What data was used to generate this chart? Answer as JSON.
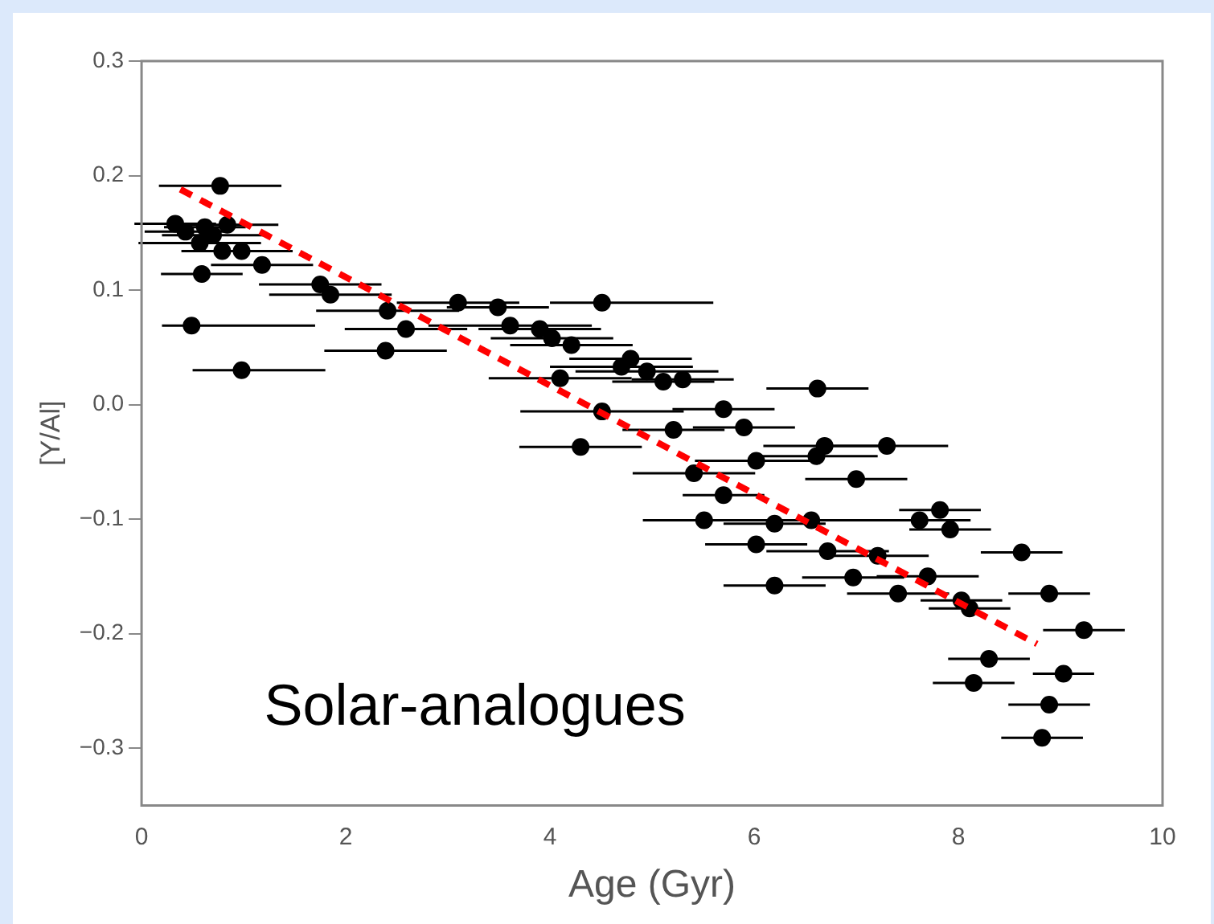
{
  "chart_data": {
    "type": "scatter",
    "xlabel": "Age (Gyr)",
    "ylabel": "[Y/Al]",
    "annotations": [
      "Solar-analogues"
    ],
    "xlim": [
      0,
      10
    ],
    "xticks": [
      0,
      2,
      4,
      6,
      8,
      10
    ],
    "ylim": [
      -0.35,
      0.3
    ],
    "yticks": [
      {
        "value": -0.3,
        "label": "−0.3"
      },
      {
        "value": -0.2,
        "label": "−0.2"
      },
      {
        "value": -0.1,
        "label": "−0.1"
      },
      {
        "value": 0,
        "label": "0.0"
      },
      0.1,
      0.2,
      0.3
    ],
    "grid": false,
    "legend": false,
    "marker": "circle",
    "series": [
      {
        "color": "#000000",
        "x": [
          0.33,
          0.43,
          0.49,
          0.57,
          0.59,
          0.62,
          0.7,
          0.77,
          0.79,
          0.84,
          0.98,
          0.98,
          1.18,
          1.75,
          1.85,
          2.39,
          2.41,
          2.59,
          3.1,
          3.49,
          3.61,
          3.9,
          4.02,
          4.21,
          4.1,
          4.3,
          4.51,
          4.51,
          4.79,
          4.7,
          4.95,
          5.11,
          5.3,
          5.21,
          5.7,
          5.9,
          5.41,
          5.7,
          5.51,
          6.02,
          6.02,
          6.2,
          6.2,
          6.62,
          6.69,
          6.61,
          7.0,
          6.56,
          6.72,
          6.97,
          7.21,
          7.3,
          7.41,
          7.62,
          7.82,
          7.92,
          7.7,
          8.03,
          8.11,
          8.62,
          8.89,
          9.23,
          8.3,
          9.03,
          8.15,
          8.89,
          8.82
        ],
        "values": [
          0.158,
          0.151,
          0.069,
          0.141,
          0.114,
          0.155,
          0.148,
          0.191,
          0.134,
          0.157,
          0.03,
          0.134,
          0.122,
          0.105,
          0.096,
          0.047,
          0.082,
          0.066,
          0.089,
          0.085,
          0.069,
          0.066,
          0.058,
          0.052,
          0.023,
          -0.037,
          0.089,
          -0.006,
          0.04,
          0.033,
          0.029,
          0.02,
          0.022,
          -0.022,
          -0.004,
          -0.02,
          -0.06,
          -0.079,
          -0.101,
          -0.049,
          -0.122,
          -0.104,
          -0.158,
          0.014,
          -0.036,
          -0.045,
          -0.065,
          -0.101,
          -0.128,
          -0.151,
          -0.132,
          -0.036,
          -0.165,
          -0.101,
          -0.092,
          -0.109,
          -0.15,
          -0.171,
          -0.178,
          -0.129,
          -0.165,
          -0.197,
          -0.222,
          -0.235,
          -0.243,
          -0.262,
          -0.291
        ],
        "xerrors": [
          0.4,
          0.4,
          [
            0.2,
            1.7
          ],
          0.6,
          0.4,
          0.4,
          0.5,
          0.6,
          0.4,
          0.5,
          [
            0.5,
            1.8
          ],
          0.5,
          0.5,
          0.6,
          0.6,
          0.6,
          0.7,
          0.6,
          0.6,
          0.5,
          0.8,
          0.6,
          0.6,
          0.6,
          0.7,
          0.6,
          [
            4.0,
            5.6
          ],
          0.8,
          0.6,
          0.7,
          0.7,
          0.5,
          0.5,
          0.5,
          0.5,
          0.5,
          0.6,
          0.4,
          0.6,
          0.6,
          0.5,
          0.5,
          0.5,
          0.5,
          0.6,
          0.6,
          0.5,
          0.6,
          0.6,
          0.5,
          0.5,
          0.6,
          0.5,
          0.5,
          0.4,
          0.4,
          0.5,
          0.4,
          0.4,
          0.4,
          0.4,
          0.4,
          0.4,
          0.3,
          0.4,
          0.4,
          0.4
        ]
      },
      {
        "type": "line",
        "color": "#ff0000",
        "line_style": "dashed",
        "marker": "none",
        "x": [
          0.38,
          8.77
        ],
        "values": [
          0.188,
          -0.209
        ]
      }
    ]
  }
}
